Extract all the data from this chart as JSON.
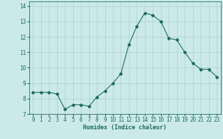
{
  "x": [
    0,
    1,
    2,
    3,
    4,
    5,
    6,
    7,
    8,
    9,
    10,
    11,
    12,
    13,
    14,
    15,
    16,
    17,
    18,
    19,
    20,
    21,
    22,
    23
  ],
  "y": [
    8.4,
    8.4,
    8.4,
    8.3,
    7.3,
    7.6,
    7.6,
    7.5,
    8.1,
    8.5,
    9.0,
    9.6,
    11.5,
    12.7,
    13.55,
    13.4,
    13.0,
    11.9,
    11.8,
    11.0,
    10.3,
    9.9,
    9.9,
    9.4
  ],
  "line_color": "#1a6b5e",
  "marker": "D",
  "marker_size": 2.0,
  "bg_color": "#cce9e9",
  "grid_color": "#aacfcf",
  "xlabel": "Humidex (Indice chaleur)",
  "ylabel": "",
  "xlim": [
    -0.5,
    23.5
  ],
  "ylim": [
    7.0,
    14.3
  ],
  "yticks": [
    7,
    8,
    9,
    10,
    11,
    12,
    13,
    14
  ],
  "xticks": [
    0,
    1,
    2,
    3,
    4,
    5,
    6,
    7,
    8,
    9,
    10,
    11,
    12,
    13,
    14,
    15,
    16,
    17,
    18,
    19,
    20,
    21,
    22,
    23
  ],
  "tick_color": "#1a6b5e",
  "label_fontsize": 6.0,
  "tick_fontsize": 5.5,
  "linewidth": 0.8
}
